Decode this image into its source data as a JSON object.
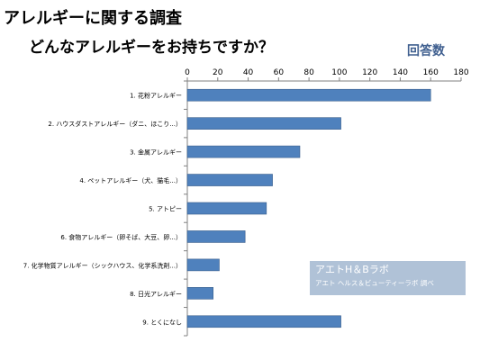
{
  "header": {
    "title_line1": "アレルギーに関する調査",
    "title_line2": "どんなアレルギーをお持ちですか？"
  },
  "chart_data": {
    "type": "bar",
    "orientation": "horizontal",
    "series_label": "回答数",
    "categories": [
      "1. 花粉アレルギー",
      "2. ハウスダストアレルギー（ダニ、ほこり...）",
      "3. 金属アレルギー",
      "4. ペットアレルギー（犬、猫毛...）",
      "5. アトピー",
      "6. 食物アレルギー（卵そば、大豆、卵...）",
      "7. 化学物質アレルギー（シックハウス、化学系洗剤...）",
      "8. 日光アレルギー",
      "9. とくになし"
    ],
    "values": [
      160,
      101,
      74,
      56,
      52,
      38,
      21,
      17,
      101
    ],
    "xlim": [
      0,
      180
    ],
    "xticks": [
      0,
      20,
      40,
      60,
      80,
      100,
      120,
      140,
      160,
      180
    ],
    "grid": false,
    "bar_color": "#4f81bd",
    "bar_border_color": "#3a5f8c",
    "axis_color": "#808080"
  },
  "watermark": {
    "line1": "アエトH＆Bラボ",
    "line2": "アエト ヘルス＆ビューティーラボ 調べ"
  }
}
